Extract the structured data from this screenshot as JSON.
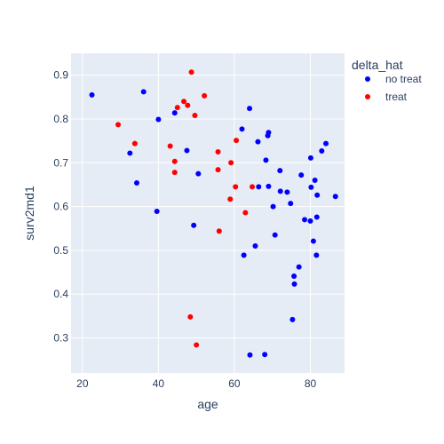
{
  "chart_data": {
    "type": "scatter",
    "xlabel": "age",
    "ylabel": "surv2md1",
    "xlim": [
      17,
      89
    ],
    "ylim": [
      0.22,
      0.95
    ],
    "xticks": [
      20,
      40,
      60,
      80
    ],
    "yticks": [
      0.3,
      0.4,
      0.5,
      0.6,
      0.7,
      0.8,
      0.9
    ],
    "ytick_labels": [
      "0.3",
      "0.4",
      "0.5",
      "0.6",
      "0.7",
      "0.8",
      "0.9"
    ],
    "grid": true,
    "legend": {
      "title": "delta_hat",
      "placement": "right"
    },
    "series": [
      {
        "name": "no treat",
        "color": "#0000ff",
        "points": [
          [
            22.5,
            0.855
          ],
          [
            32.5,
            0.722
          ],
          [
            34.3,
            0.654
          ],
          [
            36.1,
            0.862
          ],
          [
            39.6,
            0.589
          ],
          [
            40.0,
            0.799
          ],
          [
            44.3,
            0.814
          ],
          [
            47.5,
            0.728
          ],
          [
            49.3,
            0.557
          ],
          [
            50.5,
            0.675
          ],
          [
            62.0,
            0.777
          ],
          [
            62.5,
            0.489
          ],
          [
            64.0,
            0.824
          ],
          [
            64.1,
            0.261
          ],
          [
            65.5,
            0.51
          ],
          [
            66.2,
            0.748
          ],
          [
            66.4,
            0.645
          ],
          [
            68.0,
            0.262
          ],
          [
            68.3,
            0.706
          ],
          [
            68.8,
            0.762
          ],
          [
            69.0,
            0.769
          ],
          [
            69.0,
            0.646
          ],
          [
            70.2,
            0.6
          ],
          [
            70.7,
            0.535
          ],
          [
            72.0,
            0.682
          ],
          [
            72.1,
            0.635
          ],
          [
            73.9,
            0.633
          ],
          [
            74.8,
            0.607
          ],
          [
            75.3,
            0.342
          ],
          [
            75.7,
            0.441
          ],
          [
            75.8,
            0.423
          ],
          [
            77.0,
            0.462
          ],
          [
            77.6,
            0.672
          ],
          [
            78.5,
            0.57
          ],
          [
            80.0,
            0.567
          ],
          [
            80.1,
            0.711
          ],
          [
            80.2,
            0.644
          ],
          [
            80.8,
            0.521
          ],
          [
            81.2,
            0.66
          ],
          [
            81.6,
            0.489
          ],
          [
            81.7,
            0.576
          ],
          [
            81.8,
            0.626
          ],
          [
            83.0,
            0.727
          ],
          [
            84.1,
            0.744
          ],
          [
            86.6,
            0.623
          ]
        ]
      },
      {
        "name": "treat",
        "color": "#ff0000",
        "points": [
          [
            29.4,
            0.787
          ],
          [
            33.8,
            0.744
          ],
          [
            43.1,
            0.738
          ],
          [
            44.3,
            0.703
          ],
          [
            44.3,
            0.678
          ],
          [
            45.0,
            0.826
          ],
          [
            46.7,
            0.84
          ],
          [
            47.7,
            0.831
          ],
          [
            48.4,
            0.348
          ],
          [
            48.7,
            0.907
          ],
          [
            49.6,
            0.808
          ],
          [
            50.0,
            0.284
          ],
          [
            52.1,
            0.853
          ],
          [
            55.7,
            0.684
          ],
          [
            55.7,
            0.725
          ],
          [
            56.0,
            0.544
          ],
          [
            58.9,
            0.617
          ],
          [
            59.1,
            0.7
          ],
          [
            60.3,
            0.645
          ],
          [
            60.5,
            0.751
          ],
          [
            62.9,
            0.586
          ],
          [
            64.7,
            0.645
          ]
        ]
      }
    ]
  }
}
